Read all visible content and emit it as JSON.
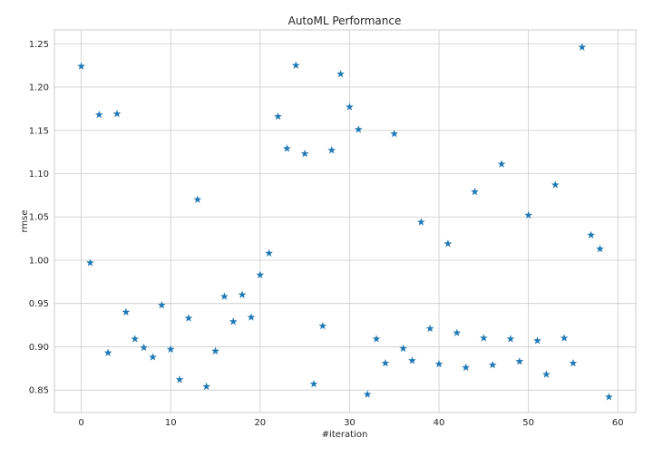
{
  "chart_data": {
    "type": "scatter",
    "title": "AutoML Performance",
    "xlabel": "#iteration",
    "ylabel": "rmse",
    "xlim": [
      -3,
      62
    ],
    "ylim": [
      0.824,
      1.266
    ],
    "xticks": [
      "0",
      "10",
      "20",
      "30",
      "40",
      "50",
      "60"
    ],
    "yticks": [
      "0.85",
      "0.90",
      "0.95",
      "1.00",
      "1.05",
      "1.10",
      "1.15",
      "1.20",
      "1.25"
    ],
    "grid": true,
    "marker": "star",
    "color": "#1f77b4",
    "x": [
      0,
      1,
      2,
      3,
      4,
      5,
      6,
      7,
      8,
      9,
      10,
      11,
      12,
      13,
      14,
      15,
      16,
      17,
      18,
      19,
      20,
      21,
      22,
      23,
      24,
      25,
      26,
      27,
      28,
      29,
      30,
      31,
      32,
      33,
      34,
      35,
      36,
      37,
      38,
      39,
      40,
      41,
      42,
      43,
      44,
      45,
      46,
      47,
      48,
      49,
      50,
      51,
      52,
      53,
      54,
      55,
      56,
      57,
      58,
      59
    ],
    "y": [
      1.224,
      0.997,
      1.168,
      0.893,
      1.169,
      0.94,
      0.909,
      0.899,
      0.888,
      0.948,
      0.897,
      0.862,
      0.933,
      1.07,
      0.854,
      0.895,
      0.958,
      0.929,
      0.96,
      0.934,
      0.983,
      1.008,
      1.166,
      1.129,
      1.225,
      1.123,
      0.857,
      0.924,
      1.127,
      1.215,
      1.177,
      1.151,
      0.845,
      0.909,
      0.881,
      1.146,
      0.898,
      0.884,
      1.044,
      0.921,
      0.88,
      1.019,
      0.916,
      0.876,
      1.079,
      0.91,
      0.879,
      1.111,
      0.909,
      0.883,
      1.052,
      0.907,
      0.868,
      1.087,
      0.91,
      0.881,
      1.246,
      1.029,
      1.013,
      0.842
    ]
  }
}
